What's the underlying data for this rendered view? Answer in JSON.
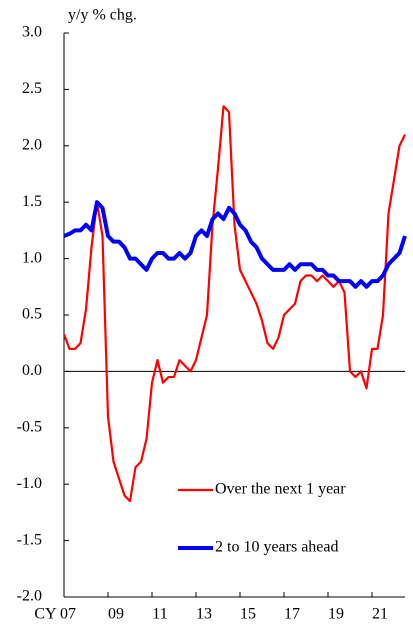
{
  "chart_data": {
    "type": "line",
    "y_axis_label": "y/y % chg.",
    "x": [
      2007.0,
      2007.25,
      2007.5,
      2007.75,
      2008.0,
      2008.25,
      2008.5,
      2008.75,
      2009.0,
      2009.25,
      2009.5,
      2009.75,
      2010.0,
      2010.25,
      2010.5,
      2010.75,
      2011.0,
      2011.25,
      2011.5,
      2011.75,
      2012.0,
      2012.25,
      2012.5,
      2012.75,
      2013.0,
      2013.25,
      2013.5,
      2013.75,
      2014.0,
      2014.25,
      2014.5,
      2014.75,
      2015.0,
      2015.25,
      2015.5,
      2015.75,
      2016.0,
      2016.25,
      2016.5,
      2016.75,
      2017.0,
      2017.25,
      2017.5,
      2017.75,
      2018.0,
      2018.25,
      2018.5,
      2018.75,
      2019.0,
      2019.25,
      2019.5,
      2019.75,
      2020.0,
      2020.25,
      2020.5,
      2020.75,
      2021.0,
      2021.25,
      2021.5,
      2021.75,
      2022.0,
      2022.25,
      2022.5
    ],
    "series": [
      {
        "name": "Over the next 1 year",
        "color": "#ff0000",
        "values": [
          0.33,
          0.2,
          0.2,
          0.25,
          0.55,
          1.1,
          1.5,
          1.2,
          -0.4,
          -0.8,
          -0.95,
          -1.1,
          -1.15,
          -0.85,
          -0.8,
          -0.6,
          -0.1,
          0.1,
          -0.1,
          -0.05,
          -0.05,
          0.1,
          0.05,
          0.0,
          0.1,
          0.3,
          0.5,
          1.3,
          1.8,
          2.35,
          2.3,
          1.3,
          0.9,
          0.8,
          0.7,
          0.6,
          0.45,
          0.25,
          0.2,
          0.3,
          0.5,
          0.55,
          0.6,
          0.8,
          0.85,
          0.85,
          0.8,
          0.85,
          0.8,
          0.75,
          0.8,
          0.7,
          0.0,
          -0.05,
          0.0,
          -0.15,
          0.2,
          0.2,
          0.5,
          1.4,
          1.7,
          2.0,
          2.1
        ]
      },
      {
        "name": "2 to 10 years ahead",
        "color": "#0000ff",
        "values": [
          1.2,
          1.22,
          1.25,
          1.25,
          1.3,
          1.25,
          1.5,
          1.45,
          1.2,
          1.15,
          1.15,
          1.1,
          1.0,
          1.0,
          0.95,
          0.9,
          1.0,
          1.05,
          1.05,
          1.0,
          1.0,
          1.05,
          1.0,
          1.05,
          1.2,
          1.25,
          1.2,
          1.35,
          1.4,
          1.35,
          1.45,
          1.4,
          1.3,
          1.25,
          1.15,
          1.1,
          1.0,
          0.95,
          0.9,
          0.9,
          0.9,
          0.95,
          0.9,
          0.95,
          0.95,
          0.95,
          0.9,
          0.9,
          0.85,
          0.85,
          0.8,
          0.8,
          0.8,
          0.75,
          0.8,
          0.75,
          0.8,
          0.8,
          0.85,
          0.95,
          1.0,
          1.05,
          1.2
        ]
      }
    ],
    "xlim": [
      2007,
      2022.5
    ],
    "xticks": [
      {
        "value": 2007,
        "label": "CY 07"
      },
      {
        "value": 2009,
        "label": "09"
      },
      {
        "value": 2011,
        "label": "11"
      },
      {
        "value": 2013,
        "label": "13"
      },
      {
        "value": 2015,
        "label": "15"
      },
      {
        "value": 2017,
        "label": "17"
      },
      {
        "value": 2019,
        "label": "19"
      },
      {
        "value": 2021,
        "label": "21"
      }
    ],
    "ylim": [
      -2,
      3
    ],
    "yticks": [
      {
        "value": -2,
        "label": "-2.0"
      },
      {
        "value": -1.5,
        "label": "-1.5"
      },
      {
        "value": -1,
        "label": "-1.0"
      },
      {
        "value": -0.5,
        "label": "-0.5"
      },
      {
        "value": 0,
        "label": "0.0"
      },
      {
        "value": 0.5,
        "label": "0.5"
      },
      {
        "value": 1,
        "label": "1.0"
      },
      {
        "value": 1.5,
        "label": "1.5"
      },
      {
        "value": 2,
        "label": "2.0"
      },
      {
        "value": 2.5,
        "label": "2.5"
      },
      {
        "value": 3,
        "label": "3.0"
      }
    ],
    "legend": "lower right"
  }
}
